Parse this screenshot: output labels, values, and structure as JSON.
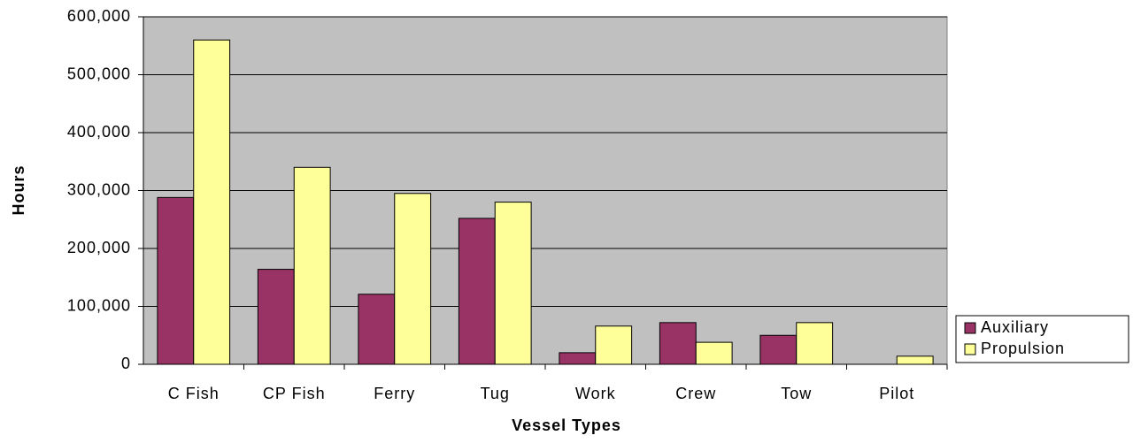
{
  "chart_data": {
    "type": "bar",
    "x_label": "Vessel Types",
    "y_label": "Hours",
    "categories": [
      "C Fish",
      "CP Fish",
      "Ferry",
      "Tug",
      "Work",
      "Crew",
      "Tow",
      "Pilot"
    ],
    "series": [
      {
        "name": "Auxiliary",
        "color": "#993366",
        "values": [
          288000,
          164000,
          121000,
          252000,
          20000,
          72000,
          50000,
          0
        ]
      },
      {
        "name": "Propulsion",
        "color": "#ffff99",
        "values": [
          560000,
          340000,
          295000,
          280000,
          66000,
          38000,
          72000,
          14000
        ]
      }
    ],
    "ylim": [
      0,
      600000
    ],
    "yticks": [
      0,
      {
        "value": 100000,
        "label": "100,000"
      },
      {
        "value": 200000,
        "label": "200,000"
      },
      {
        "value": 300000,
        "label": "300,000"
      },
      {
        "value": 400000,
        "label": "400,000"
      },
      {
        "value": 500000,
        "label": "500,000"
      },
      {
        "value": 600000,
        "label": "600,000"
      }
    ],
    "grid": true,
    "legend": "right"
  }
}
